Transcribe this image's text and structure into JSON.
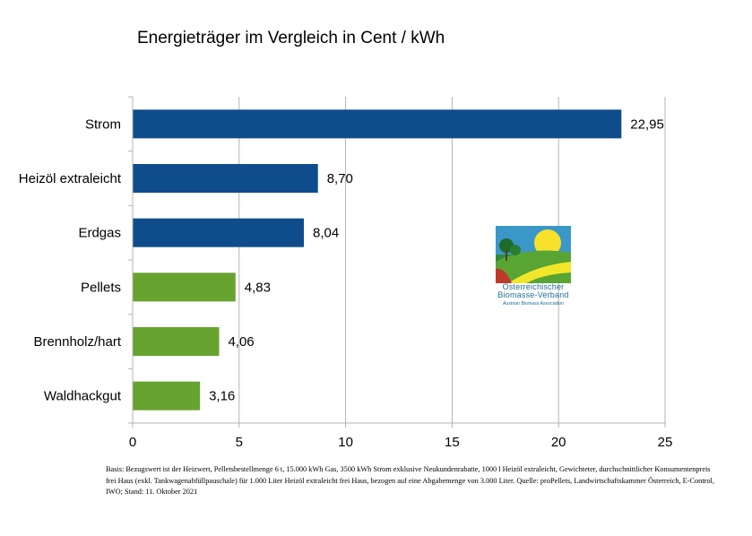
{
  "chart_data": {
    "type": "bar",
    "orientation": "horizontal",
    "title": "Energieträger im Vergleich in Cent / kWh",
    "categories": [
      "Strom",
      "Heizöl extraleicht",
      "Erdgas",
      "Pellets",
      "Brennholz/hart",
      "Waldhackgut"
    ],
    "values": [
      22.95,
      8.7,
      8.04,
      4.83,
      4.06,
      3.16
    ],
    "value_labels": [
      "22,95",
      "8,70",
      "8,04",
      "4,83",
      "4,06",
      "3,16"
    ],
    "bar_colors": [
      "#0f4c8c",
      "#0f4c8c",
      "#0f4c8c",
      "#67a32f",
      "#67a32f",
      "#67a32f"
    ],
    "xlim": [
      0,
      25
    ],
    "x_ticks": [
      0,
      5,
      10,
      15,
      20,
      25
    ],
    "x_tick_labels": [
      "0",
      "5",
      "10",
      "15",
      "20",
      "25"
    ],
    "grid": "vertical",
    "legend": "none"
  },
  "logo": {
    "line1": "Österreichischer",
    "line2": "Biomasse-Verband",
    "line3": "Austrian Biomass Association"
  },
  "footnote": "Basis: Bezugswert ist der Heizwert, Pelletsbestellmenge 6 t, 15.000 kWh Gas, 3500 kWh Strom exklusive Neukundenrabatte, 1000 l Heizöl extraleicht, Gewichteter, durchschnittlicher Konsumentenpreis frei Haus (exkl. Tankwagenabfüllpauschale) für 1.000 Liter Heizöl extraleicht frei Haus, bezogen auf eine Abgabemenge von 3.000 Liter. Quelle: proPellets, Landwirtschaftskammer Österreich, E-Control, IWO; Stand: 11. Oktober 2021"
}
